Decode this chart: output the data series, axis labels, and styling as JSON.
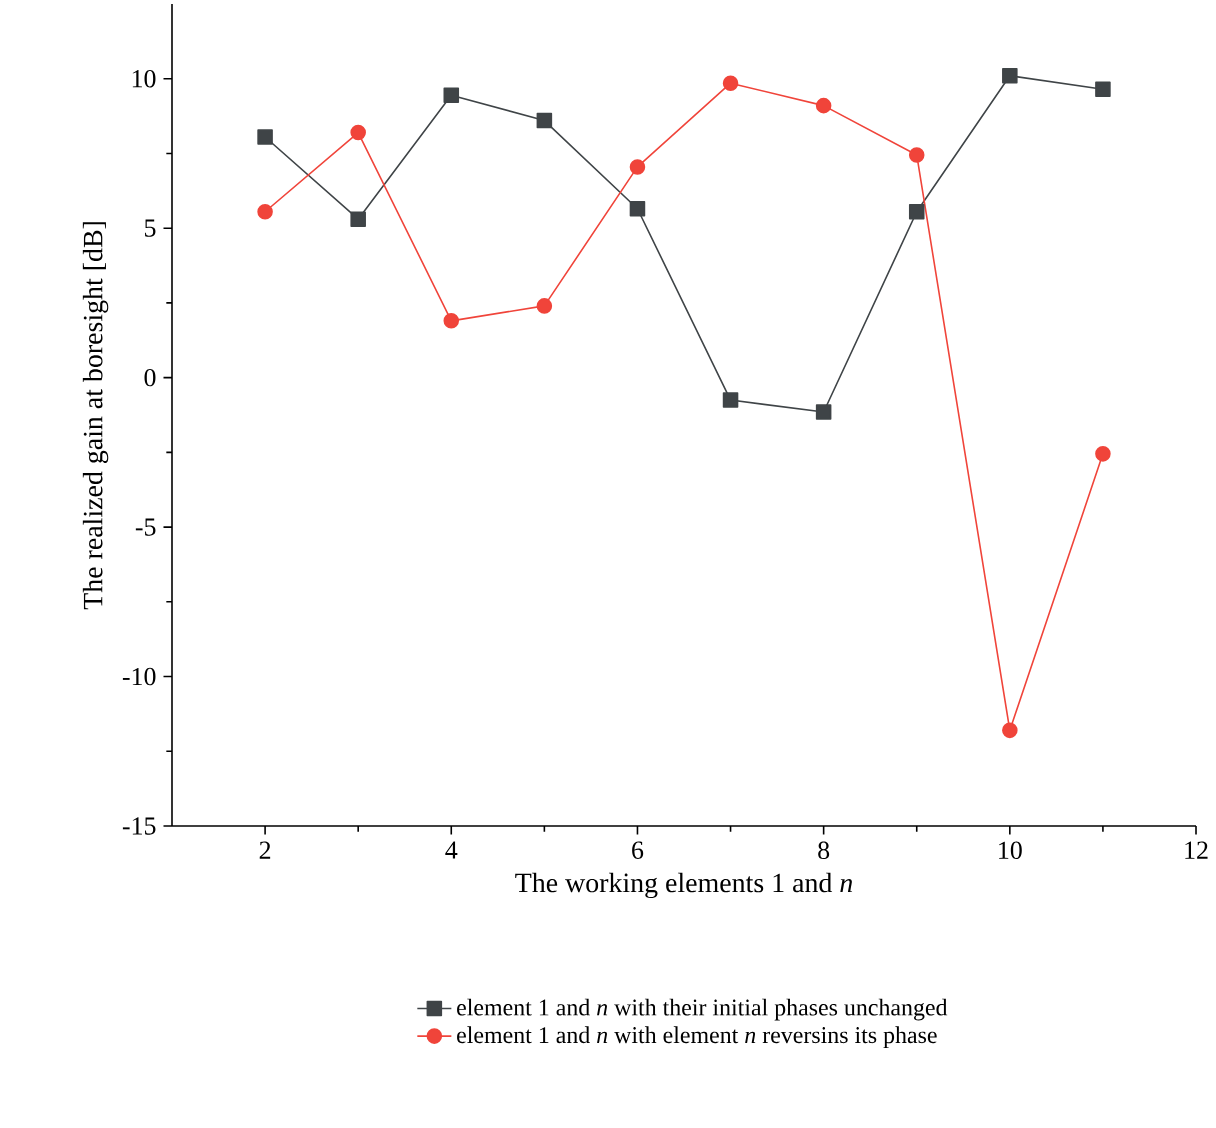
{
  "chart_data": {
    "type": "line",
    "xlabel": "The working elements 1 and *n*",
    "ylabel": "The realized gain at boresight [dB]",
    "x": [
      2,
      3,
      4,
      5,
      6,
      7,
      8,
      9,
      10,
      11
    ],
    "series": [
      {
        "name": "element 1 and *n* with their initial phases unchanged",
        "color": "#3f4447",
        "marker": "square",
        "values": [
          8.05,
          5.3,
          9.45,
          8.6,
          5.65,
          -0.75,
          -1.15,
          5.55,
          10.1,
          9.65
        ]
      },
      {
        "name": "element 1 and *n* with element *n* reversins its phase",
        "color": "#f0443a",
        "marker": "circle",
        "values": [
          5.55,
          8.2,
          1.9,
          2.4,
          7.05,
          9.85,
          9.1,
          7.45,
          -11.8,
          -2.55
        ]
      }
    ],
    "xlim": [
      1,
      12
    ],
    "ylim": [
      -15,
      12.5
    ],
    "xticks": [
      2,
      4,
      6,
      8,
      10,
      12
    ],
    "yticks": [
      -15,
      -10,
      -5,
      0,
      5,
      10
    ],
    "grid": false,
    "legend": "bottom"
  }
}
